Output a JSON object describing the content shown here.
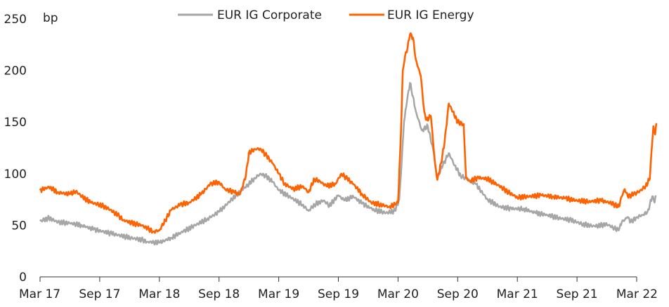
{
  "chart_data": {
    "type": "line",
    "unit_label": "bp",
    "x_ticks": [
      "Mar 17",
      "Sep 17",
      "Mar 18",
      "Sep 18",
      "Mar 19",
      "Sep 19",
      "Mar 20",
      "Sep 20",
      "Mar 21",
      "Sep 21",
      "Mar 22"
    ],
    "ylim": [
      0,
      250
    ],
    "y_ticks": [
      0,
      50,
      100,
      150,
      200,
      250
    ],
    "grid": false,
    "legend_position": "top-center",
    "series": [
      {
        "name": "EUR IG Corporate",
        "color": "#a6a6a6",
        "points": [
          [
            0.0,
            54
          ],
          [
            0.15,
            57
          ],
          [
            0.3,
            53
          ],
          [
            0.5,
            52
          ],
          [
            0.7,
            50
          ],
          [
            0.9,
            46
          ],
          [
            1.2,
            42
          ],
          [
            1.5,
            38
          ],
          [
            1.7,
            36
          ],
          [
            1.8,
            34
          ],
          [
            2.0,
            33
          ],
          [
            2.2,
            38
          ],
          [
            2.4,
            44
          ],
          [
            2.6,
            50
          ],
          [
            2.8,
            56
          ],
          [
            3.0,
            63
          ],
          [
            3.3,
            80
          ],
          [
            3.5,
            90
          ],
          [
            3.6,
            96
          ],
          [
            3.7,
            100
          ],
          [
            3.8,
            97
          ],
          [
            3.9,
            92
          ],
          [
            4.0,
            84
          ],
          [
            4.2,
            77
          ],
          [
            4.4,
            70
          ],
          [
            4.5,
            64
          ],
          [
            4.6,
            70
          ],
          [
            4.75,
            74
          ],
          [
            4.85,
            69
          ],
          [
            5.0,
            79
          ],
          [
            5.1,
            74
          ],
          [
            5.25,
            78
          ],
          [
            5.4,
            71
          ],
          [
            5.6,
            65
          ],
          [
            5.8,
            62
          ],
          [
            5.95,
            64
          ],
          [
            6.02,
            75
          ],
          [
            6.06,
            110
          ],
          [
            6.1,
            150
          ],
          [
            6.15,
            170
          ],
          [
            6.2,
            188
          ],
          [
            6.25,
            175
          ],
          [
            6.3,
            160
          ],
          [
            6.4,
            142
          ],
          [
            6.5,
            146
          ],
          [
            6.6,
            120
          ],
          [
            6.65,
            96
          ],
          [
            6.75,
            108
          ],
          [
            6.85,
            120
          ],
          [
            6.95,
            108
          ],
          [
            7.05,
            98
          ],
          [
            7.15,
            95
          ],
          [
            7.3,
            90
          ],
          [
            7.5,
            75
          ],
          [
            7.7,
            68
          ],
          [
            7.9,
            66
          ],
          [
            8.1,
            66
          ],
          [
            8.3,
            62
          ],
          [
            8.5,
            60
          ],
          [
            8.7,
            57
          ],
          [
            8.9,
            55
          ],
          [
            9.1,
            51
          ],
          [
            9.3,
            49
          ],
          [
            9.5,
            51
          ],
          [
            9.6,
            48
          ],
          [
            9.7,
            45
          ],
          [
            9.75,
            53
          ],
          [
            9.85,
            58
          ],
          [
            9.9,
            53
          ],
          [
            10.0,
            58
          ],
          [
            10.1,
            60
          ],
          [
            10.18,
            63
          ],
          [
            10.22,
            70
          ],
          [
            10.26,
            78
          ],
          [
            10.3,
            72
          ],
          [
            10.32,
            79
          ]
        ]
      },
      {
        "name": "EUR IG Energy",
        "color": "#ff6200",
        "points": [
          [
            0.0,
            84
          ],
          [
            0.15,
            87
          ],
          [
            0.3,
            82
          ],
          [
            0.5,
            80
          ],
          [
            0.6,
            83
          ],
          [
            0.7,
            78
          ],
          [
            0.85,
            72
          ],
          [
            1.0,
            70
          ],
          [
            1.15,
            66
          ],
          [
            1.3,
            60
          ],
          [
            1.4,
            55
          ],
          [
            1.55,
            52
          ],
          [
            1.7,
            50
          ],
          [
            1.8,
            47
          ],
          [
            1.9,
            44
          ],
          [
            2.0,
            45
          ],
          [
            2.1,
            55
          ],
          [
            2.2,
            65
          ],
          [
            2.35,
            70
          ],
          [
            2.5,
            72
          ],
          [
            2.7,
            80
          ],
          [
            2.85,
            90
          ],
          [
            3.0,
            92
          ],
          [
            3.1,
            85
          ],
          [
            3.25,
            82
          ],
          [
            3.35,
            80
          ],
          [
            3.45,
            98
          ],
          [
            3.5,
            120
          ],
          [
            3.6,
            124
          ],
          [
            3.7,
            124
          ],
          [
            3.8,
            117
          ],
          [
            3.9,
            110
          ],
          [
            4.0,
            100
          ],
          [
            4.1,
            90
          ],
          [
            4.25,
            85
          ],
          [
            4.4,
            88
          ],
          [
            4.5,
            82
          ],
          [
            4.6,
            95
          ],
          [
            4.7,
            92
          ],
          [
            4.8,
            88
          ],
          [
            4.95,
            90
          ],
          [
            5.05,
            100
          ],
          [
            5.15,
            95
          ],
          [
            5.25,
            90
          ],
          [
            5.4,
            80
          ],
          [
            5.55,
            72
          ],
          [
            5.7,
            70
          ],
          [
            5.85,
            68
          ],
          [
            5.96,
            70
          ],
          [
            6.0,
            72
          ],
          [
            6.05,
            140
          ],
          [
            6.08,
            200
          ],
          [
            6.12,
            215
          ],
          [
            6.16,
            222
          ],
          [
            6.2,
            235
          ],
          [
            6.25,
            232
          ],
          [
            6.3,
            210
          ],
          [
            6.38,
            195
          ],
          [
            6.44,
            160
          ],
          [
            6.48,
            152
          ],
          [
            6.55,
            156
          ],
          [
            6.62,
            110
          ],
          [
            6.66,
            94
          ],
          [
            6.72,
            110
          ],
          [
            6.78,
            130
          ],
          [
            6.85,
            168
          ],
          [
            6.92,
            160
          ],
          [
            7.0,
            150
          ],
          [
            7.1,
            148
          ],
          [
            7.14,
            96
          ],
          [
            7.2,
            93
          ],
          [
            7.35,
            96
          ],
          [
            7.5,
            95
          ],
          [
            7.7,
            88
          ],
          [
            7.85,
            82
          ],
          [
            8.0,
            77
          ],
          [
            8.2,
            78
          ],
          [
            8.4,
            79
          ],
          [
            8.6,
            78
          ],
          [
            8.8,
            76
          ],
          [
            9.0,
            74
          ],
          [
            9.2,
            73
          ],
          [
            9.4,
            74
          ],
          [
            9.55,
            72
          ],
          [
            9.7,
            68
          ],
          [
            9.75,
            78
          ],
          [
            9.8,
            85
          ],
          [
            9.85,
            78
          ],
          [
            9.95,
            80
          ],
          [
            10.05,
            83
          ],
          [
            10.15,
            88
          ],
          [
            10.22,
            95
          ],
          [
            10.26,
            130
          ],
          [
            10.28,
            146
          ],
          [
            10.31,
            138
          ],
          [
            10.33,
            149
          ]
        ]
      }
    ]
  }
}
